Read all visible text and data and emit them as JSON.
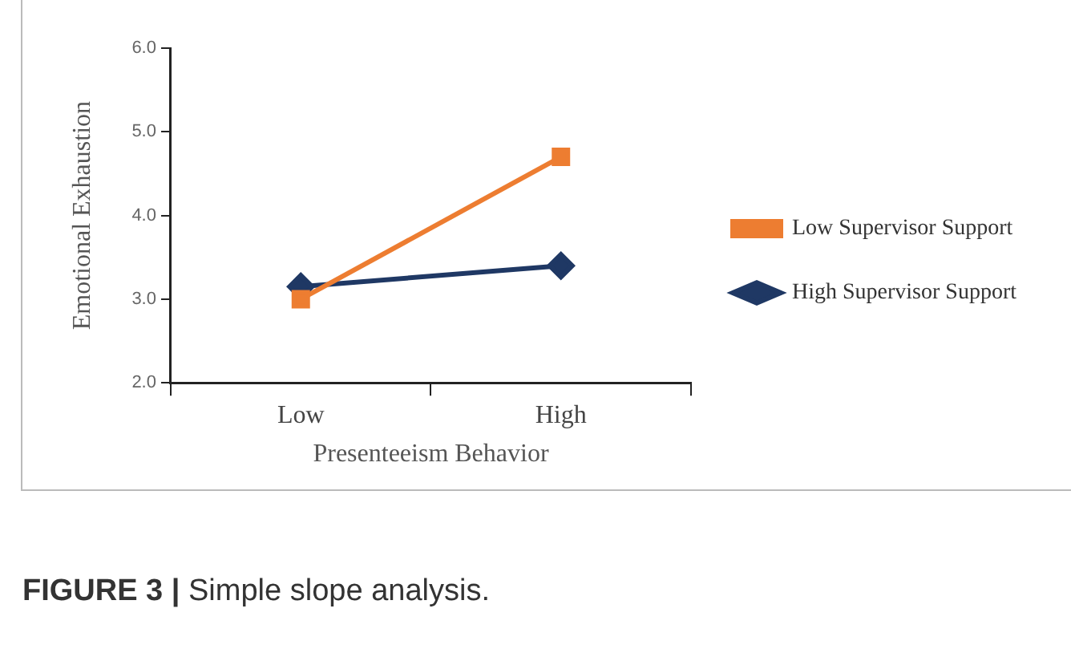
{
  "chart_data": {
    "type": "line",
    "xlabel": "Presenteeism Behavior",
    "ylabel": "Emotional Exhaustion",
    "categories": [
      "Low",
      "High"
    ],
    "series": [
      {
        "name": "Low Supervisor Support",
        "color": "#ed7d31",
        "values": [
          3.0,
          4.7
        ],
        "marker": "square"
      },
      {
        "name": "High Supervisor Support",
        "color": "#1f3864",
        "values": [
          3.15,
          3.4
        ],
        "marker": "diamond"
      }
    ],
    "ylim": [
      2,
      6
    ],
    "yticks": [
      {
        "value": 2,
        "label": "2.0"
      },
      {
        "value": 3,
        "label": "3.0"
      },
      {
        "value": 4,
        "label": "4.0"
      },
      {
        "value": 5,
        "label": "5.0"
      },
      {
        "value": 6,
        "label": "6.0"
      }
    ],
    "grid": false,
    "legend": "right",
    "line_style": "solid",
    "annotations": [
      "FIGURE 3 | Simple slope analysis."
    ]
  }
}
